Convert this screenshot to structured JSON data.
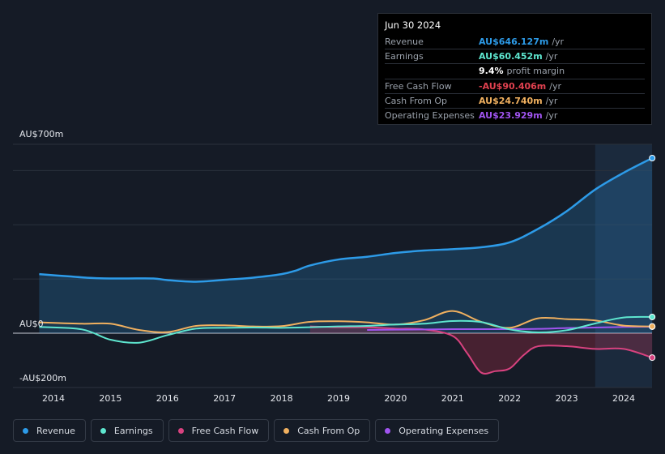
{
  "tooltip": {
    "date": "Jun 30 2024",
    "rows": [
      {
        "label": "Revenue",
        "value": "AU$646.127m",
        "unit": "/yr",
        "color": "#2d9be8"
      },
      {
        "label": "Earnings",
        "value": "AU$60.452m",
        "unit": "/yr",
        "color": "#5ee6cf"
      },
      {
        "label": "",
        "value": "9.4%",
        "unit": "profit margin",
        "color": "#ffffff"
      },
      {
        "label": "Free Cash Flow",
        "value": "-AU$90.406m",
        "unit": "/yr",
        "color": "#e0414f"
      },
      {
        "label": "Cash From Op",
        "value": "AU$24.740m",
        "unit": "/yr",
        "color": "#f0b05f"
      },
      {
        "label": "Operating Expenses",
        "value": "AU$23.929m",
        "unit": "/yr",
        "color": "#a054f0"
      }
    ]
  },
  "legend": [
    {
      "label": "Revenue",
      "color": "#2d9be8"
    },
    {
      "label": "Earnings",
      "color": "#5ee6cf"
    },
    {
      "label": "Free Cash Flow",
      "color": "#d8427f"
    },
    {
      "label": "Cash From Op",
      "color": "#f0b05f"
    },
    {
      "label": "Operating Expenses",
      "color": "#a054f0"
    }
  ],
  "chart_data": {
    "type": "area",
    "title": "",
    "ylabel": "",
    "xlabel": "",
    "ylim": [
      -200,
      700
    ],
    "y_ticks": [
      {
        "value": 700,
        "label": "AU$700m"
      },
      {
        "value": 0,
        "label": "AU$0"
      },
      {
        "value": -200,
        "label": "-AU$200m"
      }
    ],
    "x_ticks": [
      {
        "value": 2014.0,
        "label": "2014"
      },
      {
        "value": 2015.0,
        "label": "2015"
      },
      {
        "value": 2016.0,
        "label": "2016"
      },
      {
        "value": 2017.0,
        "label": "2017"
      },
      {
        "value": 2018.0,
        "label": "2018"
      },
      {
        "value": 2019.0,
        "label": "2019"
      },
      {
        "value": 2020.0,
        "label": "2020"
      },
      {
        "value": 2021.0,
        "label": "2021"
      },
      {
        "value": 2022.0,
        "label": "2022"
      },
      {
        "value": 2023.0,
        "label": "2023"
      },
      {
        "value": 2024.0,
        "label": "2024"
      }
    ],
    "xlim": [
      2013.25,
      2024.5
    ],
    "highlight_from": 2023.5,
    "series": [
      {
        "name": "Revenue",
        "color": "#2d9be8",
        "fill": true,
        "x": [
          2013.75,
          2014.25,
          2014.75,
          2015.25,
          2015.75,
          2016.0,
          2016.5,
          2017.0,
          2017.5,
          2018.0,
          2018.25,
          2018.5,
          2019.0,
          2019.5,
          2020.0,
          2020.5,
          2021.0,
          2021.5,
          2022.0,
          2022.5,
          2023.0,
          2023.5,
          2024.0,
          2024.5
        ],
        "values": [
          218,
          210,
          203,
          202,
          202,
          196,
          190,
          197,
          205,
          218,
          231,
          250,
          272,
          282,
          296,
          305,
          310,
          317,
          335,
          385,
          450,
          530,
          592,
          646
        ]
      },
      {
        "name": "Earnings",
        "color": "#5ee6cf",
        "fill": false,
        "x": [
          2013.75,
          2014.5,
          2015.0,
          2015.5,
          2016.0,
          2016.5,
          2017.0,
          2017.5,
          2018.0,
          2018.5,
          2019.0,
          2019.5,
          2020.0,
          2020.5,
          2021.0,
          2021.5,
          2022.0,
          2022.5,
          2023.0,
          2023.5,
          2024.0,
          2024.5
        ],
        "values": [
          23,
          14,
          -24,
          -35,
          -7,
          17,
          20,
          21,
          20,
          22,
          25,
          27,
          32,
          35,
          45,
          41,
          14,
          3,
          11,
          36,
          58,
          60
        ]
      },
      {
        "name": "Free Cash Flow",
        "color": "#d8427f",
        "fill": true,
        "x": [
          2018.5,
          2019.0,
          2019.5,
          2020.0,
          2020.5,
          2021.0,
          2021.25,
          2021.5,
          2021.75,
          2022.0,
          2022.25,
          2022.5,
          2023.0,
          2023.5,
          2024.0,
          2024.5
        ],
        "values": [
          25,
          22,
          22,
          17,
          14,
          -10,
          -72,
          -145,
          -140,
          -130,
          -80,
          -48,
          -48,
          -58,
          -58,
          -90
        ]
      },
      {
        "name": "Cash From Op",
        "color": "#f0b05f",
        "fill": false,
        "x": [
          2013.75,
          2014.5,
          2015.0,
          2015.5,
          2016.0,
          2016.5,
          2017.0,
          2017.5,
          2018.0,
          2018.5,
          2019.0,
          2019.5,
          2020.0,
          2020.5,
          2021.0,
          2021.5,
          2022.0,
          2022.5,
          2023.0,
          2023.5,
          2024.0,
          2024.5
        ],
        "values": [
          40,
          35,
          35,
          12,
          4,
          27,
          29,
          25,
          26,
          42,
          44,
          40,
          32,
          48,
          82,
          42,
          20,
          55,
          52,
          47,
          28,
          25
        ]
      },
      {
        "name": "Operating Expenses",
        "color": "#a054f0",
        "fill": false,
        "x": [
          2019.5,
          2020.0,
          2020.5,
          2021.0,
          2021.5,
          2022.0,
          2022.5,
          2023.0,
          2023.5,
          2024.0,
          2024.5
        ],
        "values": [
          12,
          13,
          14,
          15,
          15,
          15,
          16,
          19,
          21,
          23,
          24
        ]
      }
    ]
  }
}
